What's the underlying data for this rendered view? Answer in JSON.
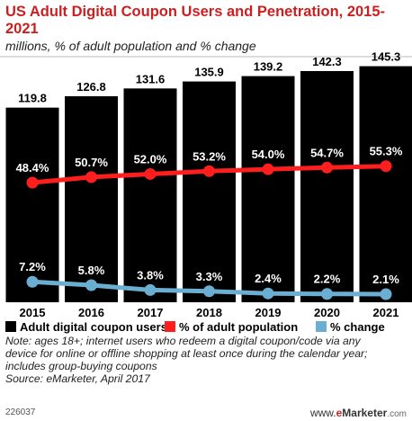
{
  "chart_data": {
    "type": "bar",
    "title": "US Adult Digital Coupon Users and Penetration, 2015-2021",
    "subtitle": "millions, % of adult population and % change",
    "categories": [
      "2015",
      "2016",
      "2017",
      "2018",
      "2019",
      "2020",
      "2021"
    ],
    "series": [
      {
        "name": "Adult digital coupon users",
        "type": "bar",
        "color": "#000000",
        "values": [
          119.8,
          126.8,
          131.6,
          135.9,
          139.2,
          142.3,
          145.3
        ],
        "labels": [
          "119.8",
          "126.8",
          "131.6",
          "135.9",
          "139.2",
          "142.3",
          "145.3"
        ]
      },
      {
        "name": "% of adult population",
        "type": "line",
        "color": "#ff1e1e",
        "values": [
          48.4,
          50.7,
          52.0,
          53.2,
          54.0,
          54.7,
          55.3
        ],
        "labels": [
          "48.4%",
          "50.7%",
          "52.0%",
          "53.2%",
          "54.0%",
          "54.7%",
          "55.3%"
        ]
      },
      {
        "name": "% change",
        "type": "line",
        "color": "#6aaed2",
        "values": [
          7.2,
          5.8,
          3.8,
          3.3,
          2.4,
          2.2,
          2.1
        ],
        "labels": [
          "7.2%",
          "5.8%",
          "3.8%",
          "3.3%",
          "2.4%",
          "2.2%",
          "2.1%"
        ]
      }
    ],
    "legend_position": "bottom",
    "grid": false
  },
  "notes": [
    "Note: ages 18+; internet users who redeem a digital coupon/code via any",
    "device for online or offline shopping at least once during the calendar year;",
    "includes group-buying coupons",
    "Source: eMarketer, April 2017"
  ],
  "footer": {
    "id": "226037",
    "brand_www": "www.",
    "brand_e": "e",
    "brand_name": "Marketer",
    "brand_com": ".com"
  }
}
